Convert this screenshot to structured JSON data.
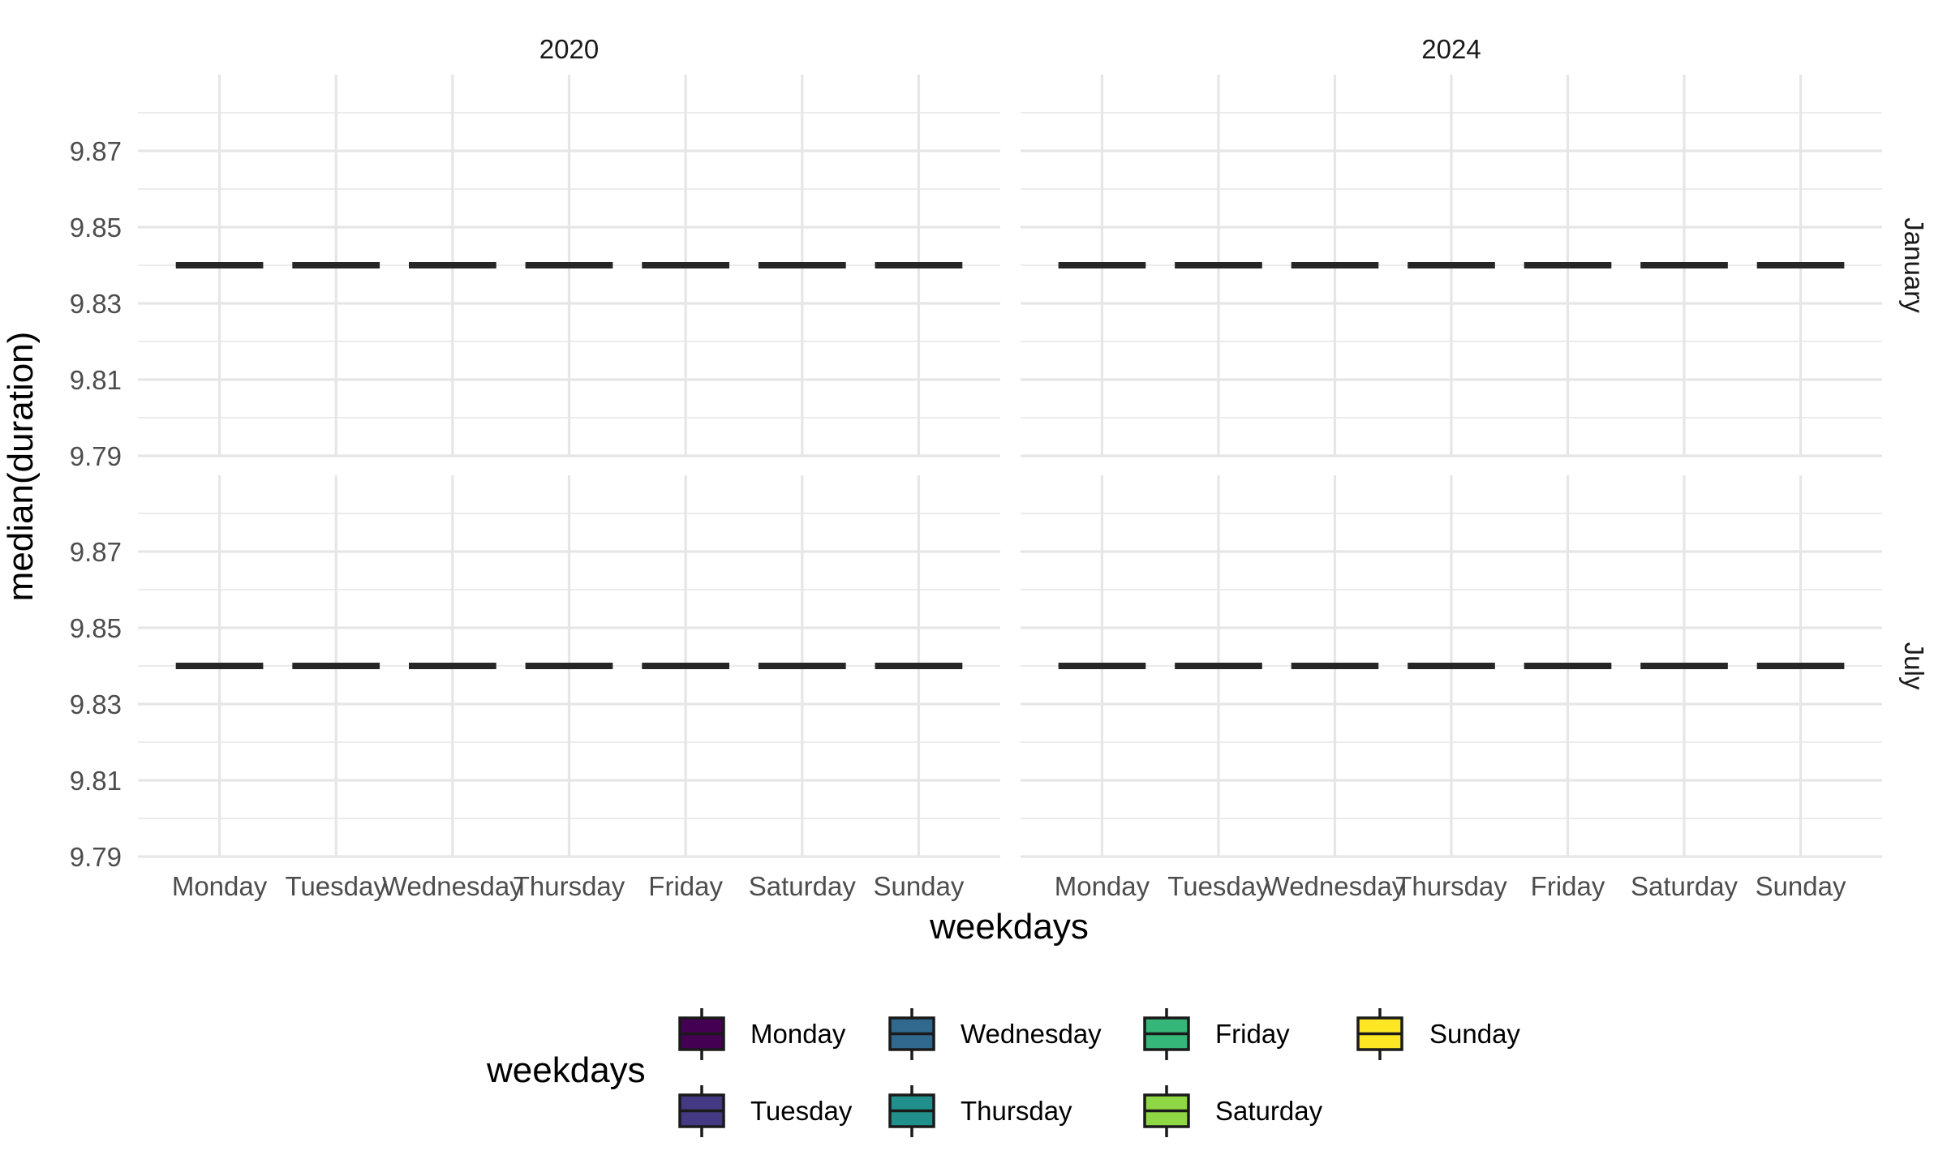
{
  "chart_data": {
    "type": "boxplot",
    "xlabel": "weekdays",
    "ylabel": "median(duration)",
    "ylim": [
      9.79,
      9.89
    ],
    "yticks": [
      9.79,
      9.81,
      9.83,
      9.85,
      9.87
    ],
    "ytick_labels": [
      "9.79",
      "9.81",
      "9.83",
      "9.85",
      "9.87"
    ],
    "grid": true,
    "categories": [
      "Monday",
      "Tuesday",
      "Wednesday",
      "Thursday",
      "Friday",
      "Saturday",
      "Sunday"
    ],
    "facet_cols": [
      "2020",
      "2024"
    ],
    "facet_rows": [
      "January",
      "July"
    ],
    "panels": [
      {
        "col": "2020",
        "row": "January",
        "values": [
          9.84,
          9.84,
          9.84,
          9.84,
          9.84,
          9.84,
          9.84
        ]
      },
      {
        "col": "2024",
        "row": "January",
        "values": [
          9.84,
          9.84,
          9.84,
          9.84,
          9.84,
          9.84,
          9.84
        ]
      },
      {
        "col": "2020",
        "row": "July",
        "values": [
          9.84,
          9.84,
          9.84,
          9.84,
          9.84,
          9.84,
          9.84
        ]
      },
      {
        "col": "2024",
        "row": "July",
        "values": [
          9.84,
          9.84,
          9.84,
          9.84,
          9.84,
          9.84,
          9.84
        ]
      }
    ],
    "legend": {
      "title": "weekdays",
      "position": "bottom",
      "items": [
        {
          "label": "Monday",
          "color": "#440154"
        },
        {
          "label": "Tuesday",
          "color": "#443A83"
        },
        {
          "label": "Wednesday",
          "color": "#31688E"
        },
        {
          "label": "Thursday",
          "color": "#21908C"
        },
        {
          "label": "Friday",
          "color": "#35B779"
        },
        {
          "label": "Saturday",
          "color": "#8FD744"
        },
        {
          "label": "Sunday",
          "color": "#FDE725"
        }
      ]
    }
  }
}
